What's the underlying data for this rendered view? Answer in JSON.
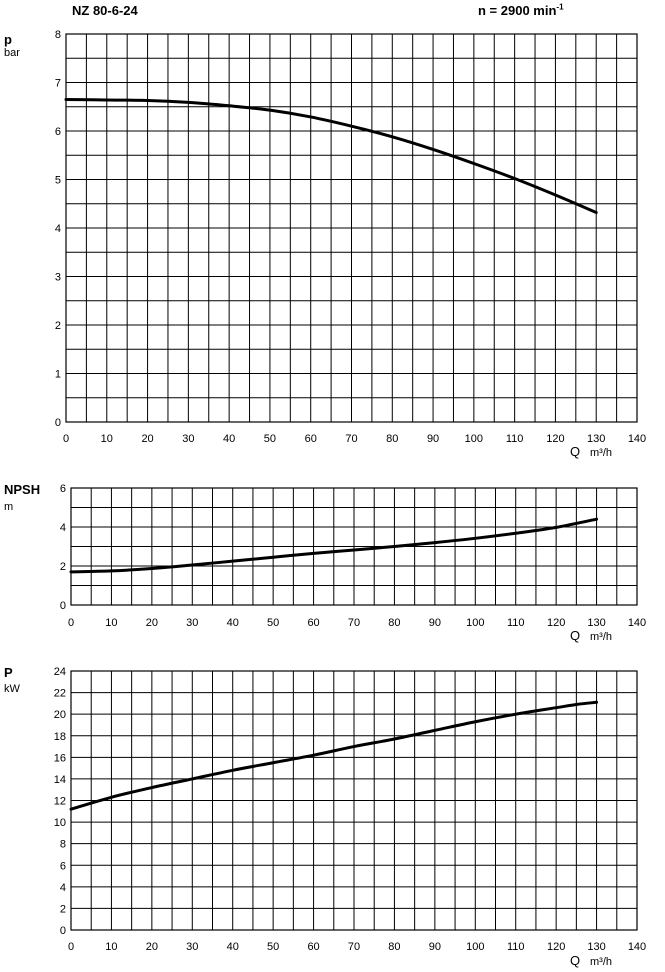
{
  "header": {
    "title": "NZ 80-6-24",
    "speed_prefix": "n = 2900 min",
    "speed_exponent": "-1"
  },
  "chart_data": [
    {
      "type": "line",
      "ylabel_symbol": "p",
      "ylabel_unit": "bar",
      "xlabel_symbol": "Q",
      "xlabel_unit": "m³/h",
      "xlim": [
        0,
        140
      ],
      "ylim": [
        0,
        8
      ],
      "x_ticks": [
        "0",
        "10",
        "20",
        "30",
        "40",
        "50",
        "60",
        "70",
        "80",
        "90",
        "100",
        "110",
        "120",
        "130",
        "140"
      ],
      "y_ticks": [
        "0",
        "1",
        "2",
        "3",
        "4",
        "5",
        "6",
        "7",
        "8"
      ],
      "grid": true,
      "series": [
        {
          "x": [
            0,
            10,
            20,
            30,
            40,
            50,
            60,
            70,
            80,
            90,
            100,
            110,
            120,
            130
          ],
          "values": [
            6.65,
            6.64,
            6.63,
            6.59,
            6.52,
            6.43,
            6.29,
            6.1,
            5.88,
            5.62,
            5.33,
            5.02,
            4.68,
            4.32
          ]
        }
      ]
    },
    {
      "type": "line",
      "ylabel_symbol": "NPSH",
      "ylabel_unit": "m",
      "xlabel_symbol": "Q",
      "xlabel_unit": "m³/h",
      "xlim": [
        0,
        140
      ],
      "ylim": [
        0,
        6
      ],
      "x_ticks": [
        "0",
        "10",
        "20",
        "30",
        "40",
        "50",
        "60",
        "70",
        "80",
        "90",
        "100",
        "110",
        "120",
        "130",
        "140"
      ],
      "y_ticks": [
        "0",
        "2",
        "4",
        "6"
      ],
      "grid": true,
      "series": [
        {
          "x": [
            0,
            10,
            20,
            30,
            40,
            50,
            60,
            70,
            80,
            90,
            100,
            110,
            120,
            130
          ],
          "values": [
            1.7,
            1.75,
            1.87,
            2.05,
            2.25,
            2.45,
            2.65,
            2.82,
            3.0,
            3.2,
            3.42,
            3.68,
            3.98,
            4.4
          ]
        }
      ]
    },
    {
      "type": "line",
      "ylabel_symbol": "P",
      "ylabel_unit": "kW",
      "xlabel_symbol": "Q",
      "xlabel_unit": "m³/h",
      "xlim": [
        0,
        140
      ],
      "ylim": [
        0,
        24
      ],
      "x_ticks": [
        "0",
        "10",
        "20",
        "30",
        "40",
        "50",
        "60",
        "70",
        "80",
        "90",
        "100",
        "110",
        "120",
        "130",
        "140"
      ],
      "y_ticks": [
        "0",
        "2",
        "4",
        "6",
        "8",
        "10",
        "12",
        "14",
        "16",
        "18",
        "20",
        "22",
        "24"
      ],
      "grid": true,
      "series": [
        {
          "x": [
            0,
            10,
            20,
            30,
            40,
            50,
            60,
            70,
            80,
            90,
            100,
            110,
            120,
            125,
            130
          ],
          "values": [
            11.2,
            12.3,
            13.2,
            14.0,
            14.8,
            15.5,
            16.2,
            17.0,
            17.7,
            18.5,
            19.3,
            20.0,
            20.6,
            20.9,
            21.1
          ]
        }
      ]
    }
  ]
}
